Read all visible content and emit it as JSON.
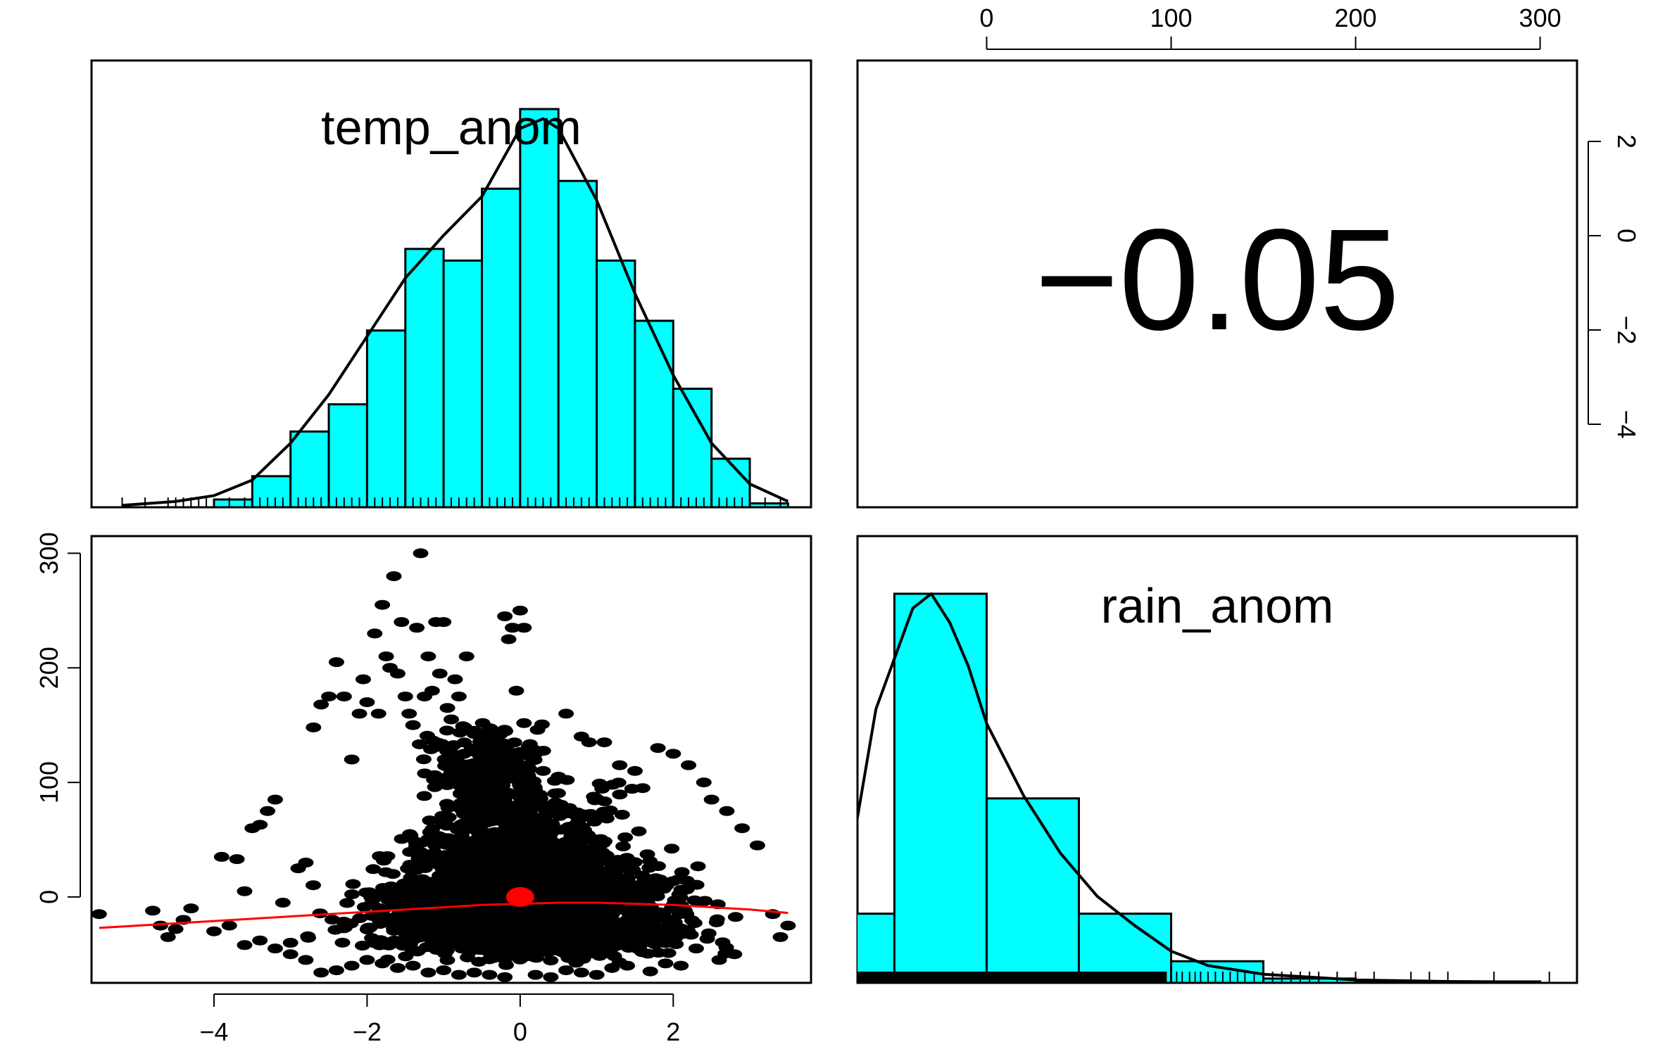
{
  "chart_data": [
    {
      "type": "pairs",
      "variables": [
        "temp_anom",
        "rain_anom"
      ],
      "colors": {
        "histogram_fill": "#00FFFF",
        "scatter_points": "#000000",
        "smooth_line": "#FF0000",
        "centroid": "#FF0000",
        "density_line": "#000000"
      },
      "axes": {
        "temp_anom": {
          "range": [
            -5.6,
            3.8
          ],
          "ticks": [
            -4,
            -2,
            0,
            2
          ],
          "tick_labels": [
            "−4",
            "−2",
            "0",
            "2"
          ]
        },
        "rain_anom": {
          "range": [
            -70,
            320
          ],
          "ticks": [
            0,
            100,
            200,
            300
          ],
          "tick_labels": [
            "0",
            "100",
            "200",
            "300"
          ]
        }
      }
    },
    {
      "type": "bar",
      "panel": "diagonal-1",
      "title": "temp_anom",
      "bin_edges": [
        -4,
        -3.5,
        -3,
        -2.5,
        -2,
        -1.5,
        -1,
        -0.5,
        0,
        0.5,
        1,
        1.5,
        2,
        2.5,
        3,
        3.5
      ],
      "values": [
        0.004,
        0.016,
        0.039,
        0.053,
        0.091,
        0.133,
        0.127,
        0.164,
        0.205,
        0.168,
        0.127,
        0.096,
        0.061,
        0.025,
        0.002
      ],
      "ylim": [
        0,
        0.23
      ],
      "density_curve": {
        "x": [
          -5.2,
          -4.5,
          -4,
          -3.5,
          -3,
          -2.5,
          -2,
          -1.5,
          -1,
          -0.5,
          0,
          0.3,
          0.5,
          1,
          1.5,
          2,
          2.5,
          3,
          3.5
        ],
        "y": [
          0.001,
          0.003,
          0.006,
          0.014,
          0.033,
          0.058,
          0.088,
          0.118,
          0.14,
          0.16,
          0.195,
          0.2,
          0.195,
          0.158,
          0.11,
          0.068,
          0.033,
          0.012,
          0.003
        ]
      },
      "rug": [
        -5.2,
        -4.9,
        -4.6,
        -4.5,
        -4.4,
        -4.3,
        -4.2,
        -4.1,
        -3.8,
        -3.6,
        -3.5,
        -3.4,
        -3.3,
        -3.2,
        -3.1,
        -3.0,
        -2.9,
        -2.8,
        -2.7,
        -2.6,
        -2.5,
        -2.4,
        -2.3,
        -2.2,
        -2.1,
        -2.0,
        -1.9,
        -1.8,
        -1.7,
        -1.6,
        -1.5,
        -1.4,
        -1.3,
        -1.2,
        -1.1,
        -1.0,
        -0.9,
        -0.8,
        -0.7,
        -0.6,
        -0.5,
        -0.4,
        -0.3,
        -0.2,
        -0.1,
        0.0,
        0.1,
        0.2,
        0.3,
        0.4,
        0.5,
        0.6,
        0.7,
        0.8,
        0.9,
        1.0,
        1.1,
        1.2,
        1.3,
        1.4,
        1.5,
        1.6,
        1.7,
        1.8,
        1.9,
        2.0,
        2.1,
        2.2,
        2.3,
        2.4,
        2.5,
        2.6,
        2.7,
        2.8,
        2.9,
        3.0,
        3.2,
        3.4
      ]
    },
    {
      "type": "text",
      "panel": "upper-right",
      "label": "correlation",
      "value": -0.05,
      "text": "−0.05"
    },
    {
      "type": "scatter",
      "panel": "lower-left",
      "xlabel": "",
      "ylabel": "",
      "xlim": [
        -5.6,
        3.8
      ],
      "ylim": [
        -75,
        315
      ],
      "points": [
        [
          -5.5,
          -15
        ],
        [
          -4.8,
          -12
        ],
        [
          -4.7,
          -25
        ],
        [
          -4.6,
          -35
        ],
        [
          -4.5,
          -28
        ],
        [
          -4.4,
          -20
        ],
        [
          -4.3,
          -10
        ],
        [
          -4.0,
          -30
        ],
        [
          -3.9,
          35
        ],
        [
          -3.7,
          33
        ],
        [
          -3.6,
          5
        ],
        [
          -3.5,
          60
        ],
        [
          -3.4,
          63
        ],
        [
          -3.3,
          75
        ],
        [
          -3.2,
          85
        ],
        [
          -3.1,
          -5
        ],
        [
          -3.0,
          -40
        ],
        [
          -2.9,
          25
        ],
        [
          -2.8,
          30
        ],
        [
          -2.7,
          148
        ],
        [
          -2.6,
          168
        ],
        [
          -2.5,
          175
        ],
        [
          -2.4,
          205
        ],
        [
          -2.3,
          175
        ],
        [
          -2.2,
          120
        ],
        [
          -2.1,
          160
        ],
        [
          -2.05,
          190
        ],
        [
          -2.0,
          170
        ],
        [
          -1.9,
          230
        ],
        [
          -1.85,
          160
        ],
        [
          -1.8,
          255
        ],
        [
          -1.75,
          210
        ],
        [
          -1.7,
          200
        ],
        [
          -1.65,
          280
        ],
        [
          -1.6,
          195
        ],
        [
          -1.55,
          240
        ],
        [
          -1.5,
          175
        ],
        [
          -1.45,
          160
        ],
        [
          -1.4,
          150
        ],
        [
          -1.35,
          235
        ],
        [
          -1.3,
          300
        ],
        [
          -1.25,
          175
        ],
        [
          -1.2,
          210
        ],
        [
          -1.15,
          180
        ],
        [
          -1.1,
          240
        ],
        [
          -1.05,
          195
        ],
        [
          -1.0,
          240
        ],
        [
          -0.95,
          165
        ],
        [
          -0.9,
          155
        ],
        [
          -0.85,
          190
        ],
        [
          -0.8,
          175
        ],
        [
          -0.7,
          210
        ],
        [
          -0.6,
          145
        ],
        [
          -0.5,
          125
        ],
        [
          -0.4,
          135
        ],
        [
          -0.3,
          105
        ],
        [
          -0.2,
          245
        ],
        [
          -0.15,
          225
        ],
        [
          -0.1,
          235
        ],
        [
          -0.05,
          180
        ],
        [
          0.0,
          250
        ],
        [
          0.05,
          235
        ],
        [
          0.1,
          115
        ],
        [
          0.2,
          125
        ],
        [
          0.3,
          110
        ],
        [
          0.5,
          105
        ],
        [
          0.6,
          160
        ],
        [
          0.8,
          140
        ],
        [
          0.9,
          135
        ],
        [
          1.1,
          135
        ],
        [
          1.3,
          115
        ],
        [
          1.5,
          110
        ],
        [
          1.6,
          95
        ],
        [
          1.8,
          130
        ],
        [
          2.0,
          125
        ],
        [
          2.2,
          115
        ],
        [
          2.4,
          100
        ],
        [
          2.5,
          85
        ],
        [
          2.7,
          75
        ],
        [
          2.9,
          60
        ],
        [
          3.1,
          45
        ],
        [
          3.3,
          -15
        ],
        [
          3.4,
          -35
        ],
        [
          3.5,
          -25
        ],
        [
          2.8,
          -50
        ],
        [
          2.6,
          -55
        ],
        [
          2.3,
          -45
        ],
        [
          2.1,
          -60
        ],
        [
          1.9,
          -58
        ],
        [
          1.7,
          -65
        ],
        [
          1.4,
          -60
        ],
        [
          1.2,
          -62
        ],
        [
          1.0,
          -68
        ],
        [
          0.8,
          -66
        ],
        [
          0.6,
          -64
        ],
        [
          0.4,
          -70
        ],
        [
          0.2,
          -68
        ],
        [
          -0.2,
          -70
        ],
        [
          -0.4,
          -68
        ],
        [
          -0.6,
          -66
        ],
        [
          -0.8,
          -68
        ],
        [
          -1.0,
          -64
        ],
        [
          -1.2,
          -66
        ],
        [
          -1.4,
          -60
        ],
        [
          -1.6,
          -62
        ],
        [
          -1.8,
          -58
        ],
        [
          -2.0,
          -55
        ],
        [
          -2.2,
          -60
        ],
        [
          -2.4,
          -64
        ],
        [
          -2.6,
          -66
        ],
        [
          -2.8,
          -55
        ],
        [
          -3.0,
          -50
        ],
        [
          -3.2,
          -45
        ],
        [
          -3.4,
          -38
        ],
        [
          -3.6,
          -42
        ],
        [
          -3.8,
          -25
        ]
      ],
      "bulk_density": [
        {
          "x0": -3.2,
          "x1": 3.2,
          "y0": -60,
          "y1": 30,
          "n": 900
        },
        {
          "x0": -2.4,
          "x1": 2.6,
          "y0": -60,
          "y1": 60,
          "n": 900
        },
        {
          "x0": -1.8,
          "x1": 2.0,
          "y0": -50,
          "y1": 110,
          "n": 700
        },
        {
          "x0": -1.6,
          "x1": 0.6,
          "y0": 60,
          "y1": 160,
          "n": 260
        }
      ],
      "smooth_line": {
        "x": [
          -5.5,
          -4.5,
          -3.5,
          -2.5,
          -1.5,
          -0.5,
          0.0,
          0.5,
          1.0,
          1.5,
          2.0,
          2.5,
          3.0,
          3.5
        ],
        "y": [
          -27,
          -23,
          -19,
          -15,
          -11,
          -7,
          -6,
          -5,
          -5,
          -6,
          -7,
          -9,
          -11,
          -14
        ]
      },
      "centroid": {
        "x": 0.0,
        "y": 0.0
      }
    },
    {
      "type": "bar",
      "panel": "diagonal-2",
      "title": "rain_anom",
      "bin_edges": [
        -100,
        -50,
        0,
        50,
        100,
        150,
        200,
        250,
        300
      ],
      "values": [
        0.00048,
        0.0027,
        0.00128,
        0.00048,
        0.00015,
        3e-05,
        1e-05,
        1e-05
      ],
      "ylim": [
        0,
        0.0031
      ],
      "density_curve": {
        "x": [
          -95,
          -80,
          -60,
          -40,
          -30,
          -20,
          -10,
          0,
          20,
          40,
          60,
          80,
          100,
          120,
          150,
          200,
          250,
          300
        ],
        "y": [
          0.0001,
          0.0004,
          0.0019,
          0.0026,
          0.0027,
          0.0025,
          0.0022,
          0.0018,
          0.0013,
          0.0009,
          0.0006,
          0.0004,
          0.00022,
          0.00012,
          6e-05,
          2e-05,
          1e-05,
          5e-06
        ]
      },
      "rug": [
        -80,
        -75,
        -70,
        -65,
        -60,
        -55,
        -50,
        -45,
        -40,
        -35,
        -30,
        -25,
        -20,
        -15,
        -10,
        -5,
        0,
        5,
        10,
        15,
        20,
        25,
        30,
        35,
        40,
        45,
        50,
        55,
        60,
        65,
        70,
        75,
        80,
        85,
        90,
        95,
        100,
        103,
        106,
        110,
        113,
        116,
        120,
        124,
        128,
        132,
        136,
        140,
        145,
        150,
        155,
        160,
        165,
        170,
        175,
        180,
        190,
        200,
        210,
        230,
        240,
        250,
        275,
        305
      ]
    }
  ]
}
